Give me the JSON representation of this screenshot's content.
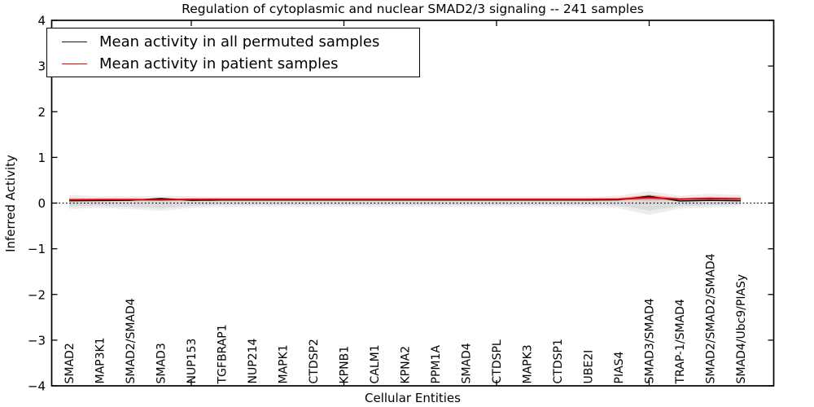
{
  "figure": {
    "background": "#ffffff"
  },
  "chart_data": {
    "type": "line",
    "title": "Regulation of cytoplasmic and nuclear SMAD2/3 signaling -- 241 samples",
    "xlabel": "Cellular Entities",
    "ylabel": "Inferred Activity",
    "ylim": [
      -4,
      4
    ],
    "yticks": [
      4,
      3,
      2,
      1,
      0,
      -1,
      -2,
      -3,
      -4
    ],
    "x_major_tick_indices": [
      4,
      9,
      14,
      19
    ],
    "grid": false,
    "legend_position": "upper-left",
    "categories": [
      "SMAD2",
      "MAP3K1",
      "SMAD2/SMAD4",
      "SMAD3",
      "NUP153",
      "TGFBRAP1",
      "NUP214",
      "MAPK1",
      "CTDSP2",
      "KPNB1",
      "CALM1",
      "KPNA2",
      "PPM1A",
      "SMAD4",
      "CTDSPL",
      "MAPK3",
      "CTDSP1",
      "UBE2I",
      "PIAS4",
      "SMAD3/SMAD4",
      "TRAP-1/SMAD4",
      "SMAD2/SMAD2/SMAD4",
      "SMAD4/Ubc9/PIASy"
    ],
    "series": [
      {
        "name": "Mean activity in all permuted samples",
        "color": "#000000",
        "style": "solid",
        "values": [
          0.05,
          0.055,
          0.06,
          0.1,
          0.06,
          0.065,
          0.065,
          0.065,
          0.065,
          0.065,
          0.065,
          0.065,
          0.065,
          0.065,
          0.065,
          0.065,
          0.065,
          0.065,
          0.07,
          0.15,
          0.045,
          0.06,
          0.05
        ]
      },
      {
        "name": "Mean activity in patient samples",
        "color": "#e60000",
        "style": "solid",
        "values": [
          0.07,
          0.075,
          0.075,
          0.07,
          0.08,
          0.08,
          0.08,
          0.08,
          0.08,
          0.08,
          0.08,
          0.08,
          0.08,
          0.08,
          0.08,
          0.08,
          0.08,
          0.08,
          0.085,
          0.12,
          0.085,
          0.1,
          0.09
        ]
      }
    ],
    "bands": [
      {
        "name": "permuted-spread-outer",
        "color": "#ebebeb",
        "opacity": 0.9,
        "upper": [
          0.18,
          0.15,
          0.15,
          0.16,
          0.15,
          0.14,
          0.14,
          0.14,
          0.14,
          0.14,
          0.14,
          0.14,
          0.14,
          0.14,
          0.14,
          0.14,
          0.14,
          0.14,
          0.16,
          0.26,
          0.16,
          0.2,
          0.18
        ],
        "lower": [
          -0.13,
          -0.11,
          -0.13,
          -0.17,
          -0.11,
          -0.08,
          -0.08,
          -0.08,
          -0.08,
          -0.08,
          -0.08,
          -0.08,
          -0.08,
          -0.08,
          -0.08,
          -0.08,
          -0.08,
          -0.08,
          -0.11,
          -0.26,
          -0.12,
          -0.1,
          -0.07
        ]
      },
      {
        "name": "permuted-spread-inner",
        "color": "#d7d7d7",
        "opacity": 0.85,
        "upper": [
          0.12,
          0.1,
          0.1,
          0.11,
          0.1,
          0.1,
          0.1,
          0.1,
          0.1,
          0.1,
          0.1,
          0.1,
          0.1,
          0.1,
          0.1,
          0.1,
          0.1,
          0.1,
          0.11,
          0.18,
          0.11,
          0.14,
          0.13
        ],
        "lower": [
          -0.07,
          -0.06,
          -0.08,
          -0.11,
          -0.06,
          -0.04,
          -0.04,
          -0.04,
          -0.04,
          -0.04,
          -0.04,
          -0.04,
          -0.04,
          -0.04,
          -0.04,
          -0.04,
          -0.04,
          -0.04,
          -0.06,
          -0.16,
          -0.07,
          -0.05,
          -0.03
        ]
      },
      {
        "name": "patient-spread",
        "color": "#ff2a2a",
        "opacity": 0.35,
        "upper": [
          0.095,
          0.1,
          0.1,
          0.095,
          0.105,
          0.105,
          0.105,
          0.105,
          0.105,
          0.105,
          0.105,
          0.105,
          0.105,
          0.105,
          0.105,
          0.105,
          0.105,
          0.105,
          0.11,
          0.18,
          0.11,
          0.13,
          0.12
        ],
        "lower": [
          0.05,
          0.055,
          0.055,
          0.05,
          0.06,
          0.06,
          0.06,
          0.06,
          0.06,
          0.06,
          0.06,
          0.06,
          0.06,
          0.06,
          0.06,
          0.06,
          0.06,
          0.06,
          0.065,
          0.06,
          0.065,
          0.08,
          0.07
        ]
      }
    ],
    "zero_line": {
      "value": 0,
      "style": "dotted",
      "color": "#000000"
    },
    "legend": {
      "entries": [
        {
          "label": "Mean activity in all permuted samples",
          "color": "#1a1a1a"
        },
        {
          "label": "Mean activity in patient samples",
          "color": "#ff0000"
        }
      ]
    }
  }
}
